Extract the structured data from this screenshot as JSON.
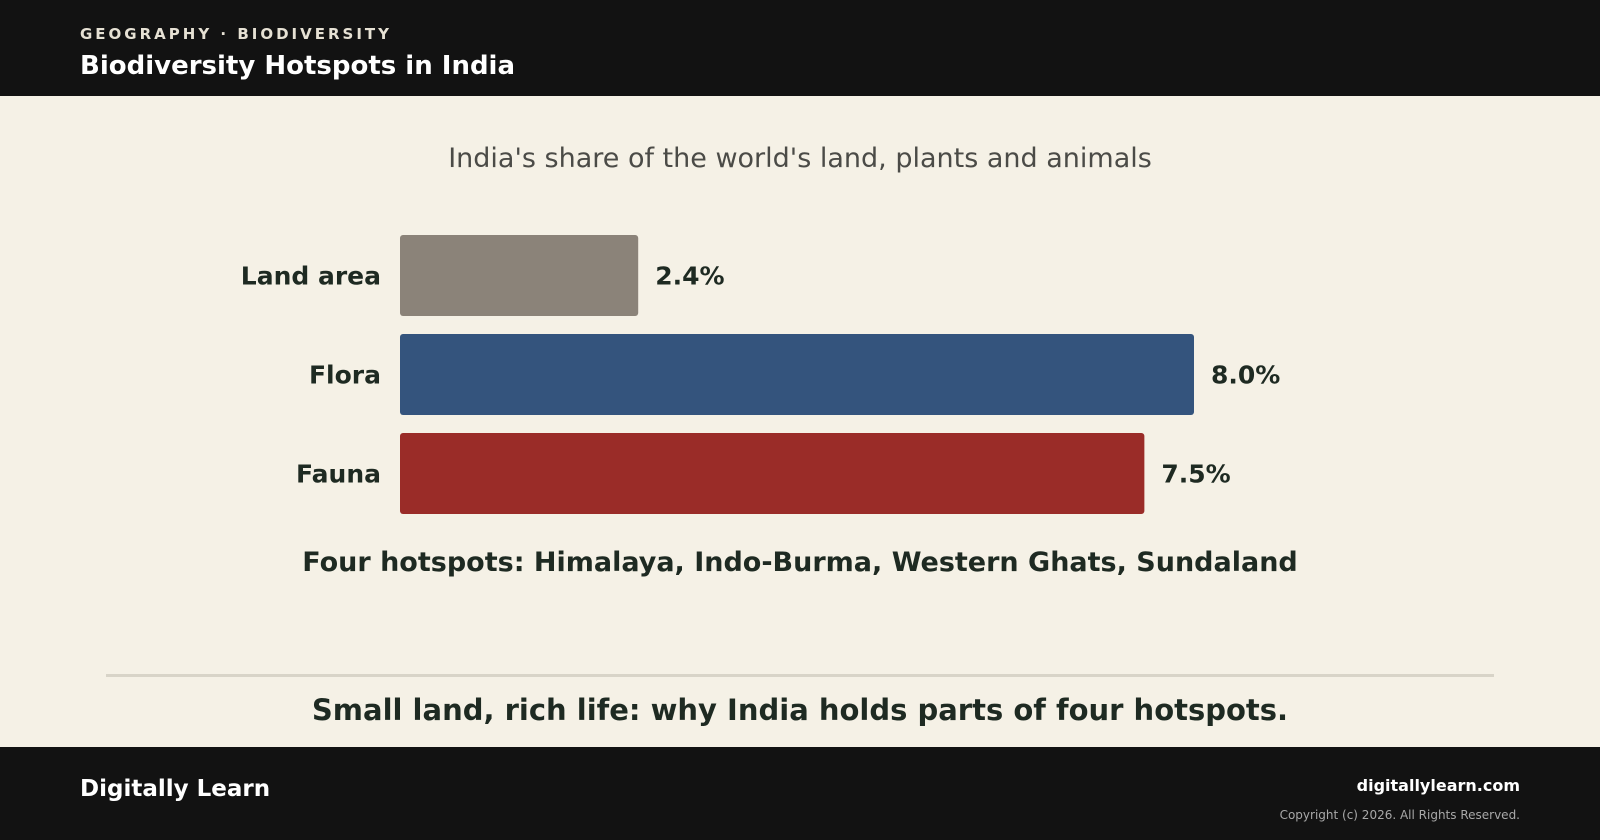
{
  "header": {
    "kicker": "GEOGRAPHY · BIODIVERSITY",
    "title": "Biodiversity Hotspots in India"
  },
  "chart_data": {
    "type": "bar",
    "orientation": "horizontal",
    "title": "India's share of the world's land, plants and animals",
    "categories": [
      "Land area",
      "Flora",
      "Fauna"
    ],
    "values": [
      2.4,
      8.0,
      7.5
    ],
    "value_labels": [
      "2.4%",
      "8.0%",
      "7.5%"
    ],
    "colors": [
      "#8b8379",
      "#34547d",
      "#9a2c28"
    ],
    "xlim": [
      0,
      8
    ],
    "grid": false,
    "note": "Four hotspots: Himalaya, Indo-Burma, Western Ghats, Sundaland"
  },
  "caption": "Small land, rich life: why India holds parts of four hotspots.",
  "footer": {
    "brand": "Digitally Learn",
    "site": "digitallylearn.com",
    "copyright": "Copyright (c) 2026. All Rights Reserved."
  }
}
